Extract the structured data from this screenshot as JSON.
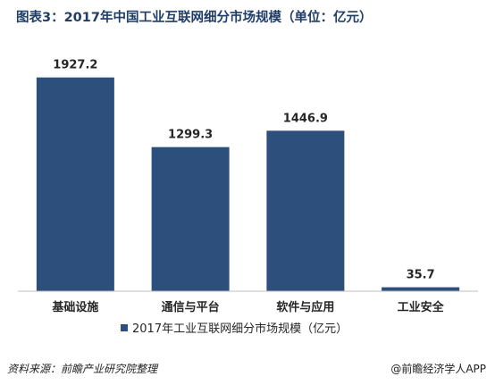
{
  "title": "图表3：2017年中国工业互联网细分市场规模（单位：亿元）",
  "source": "资料来源：前瞻产业研究院整理",
  "credit": "@前瞻经济学人APP",
  "colors": {
    "bar": "#2d4f7c",
    "axis": "#bfbfbf",
    "title": "#1f3d66"
  },
  "chart_data": {
    "type": "bar",
    "categories": [
      "基础设施",
      "通信与平台",
      "软件与应用",
      "工业安全"
    ],
    "series": [
      {
        "name": "2017年工业互联网细分市场规模（亿元）",
        "values": [
          1927.2,
          1299.3,
          1446.9,
          35.7
        ]
      }
    ],
    "ylim": [
      0,
      2400
    ],
    "grid": false,
    "legend": "bottom",
    "data_labels": [
      "1927.2",
      "1299.3",
      "1446.9",
      "35.7"
    ]
  }
}
